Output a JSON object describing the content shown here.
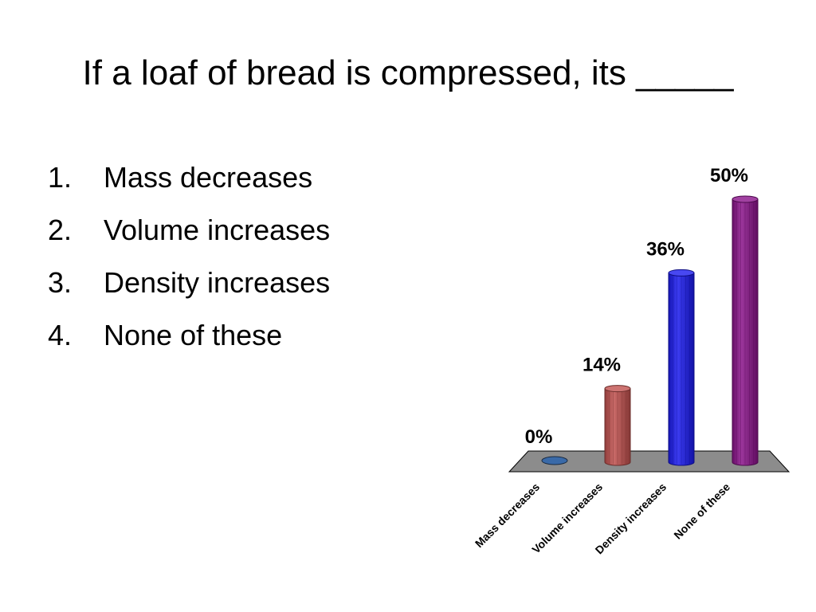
{
  "slide": {
    "title": "If a loaf of bread is compressed, its _____",
    "options": [
      {
        "number": "1.",
        "text": "Mass decreases"
      },
      {
        "number": "2.",
        "text": "Volume increases"
      },
      {
        "number": "3.",
        "text": "Density increases"
      },
      {
        "number": "4.",
        "text": "None of these"
      }
    ]
  },
  "chart_data": {
    "type": "bar",
    "title": "",
    "xlabel": "",
    "ylabel": "",
    "categories": [
      "Mass decreases",
      "Volume increases",
      "Density increases",
      "None of these"
    ],
    "values": [
      0,
      14,
      36,
      50
    ],
    "value_labels": [
      "0%",
      "14%",
      "36%",
      "50%"
    ],
    "colors": [
      "#3a6aa8",
      "#c0504d",
      "#1a1aee",
      "#8a128a"
    ],
    "floor_color": "#8c8c8c",
    "ylim": [
      0,
      50
    ],
    "style": "3d-cylinder",
    "grid": false,
    "legend": "none"
  }
}
